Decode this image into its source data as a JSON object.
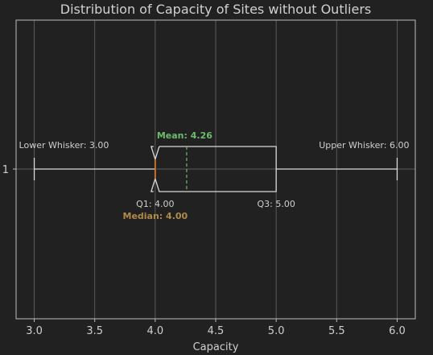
{
  "chart_data": {
    "type": "boxplot",
    "title": "Distribution of Capacity of Sites without Outliers",
    "xlabel": "Capacity",
    "ylabel": "",
    "orientation": "horizontal",
    "xlim": [
      2.85,
      6.15
    ],
    "xticks": [
      3.0,
      3.5,
      4.0,
      4.5,
      5.0,
      5.5,
      6.0
    ],
    "xtick_labels": [
      "3.0",
      "3.5",
      "4.0",
      "4.5",
      "5.0",
      "5.5",
      "6.0"
    ],
    "ytick_labels": [
      "1"
    ],
    "grid": true,
    "box": {
      "category": "1",
      "lower_whisker": 3.0,
      "q1": 4.0,
      "median": 4.0,
      "mean": 4.26,
      "q3": 5.0,
      "upper_whisker": 6.0,
      "notched": true
    },
    "annotations": {
      "lower_whisker": "Lower Whisker: 3.00",
      "upper_whisker": "Upper Whisker: 6.00",
      "q1": "Q1: 4.00",
      "q3": "Q3: 5.00",
      "median": "Median: 4.00",
      "mean": "Mean:  4.26"
    },
    "colors": {
      "background": "#212121",
      "box": "#d9d9d9",
      "median": "#d4782a",
      "mean": "#6dbb6d",
      "median_text": "#b08a4a",
      "grid": "#5a5a5a"
    }
  }
}
